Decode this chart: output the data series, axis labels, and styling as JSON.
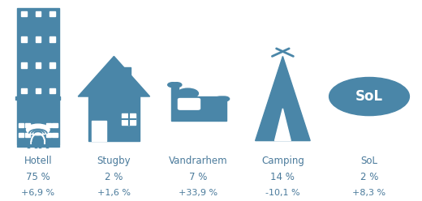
{
  "background_color": "#ffffff",
  "icon_color": "#4a86a8",
  "text_color": "#4a7a9b",
  "categories": [
    "Hotell",
    "Stugby",
    "Vandrarhem",
    "Camping",
    "SoL"
  ],
  "percentages": [
    "75 %",
    "2 %",
    "7 %",
    "14 %",
    "2 %"
  ],
  "changes": [
    "+6,9 %",
    "+1,6 %",
    "+33,9 %",
    "-10,1 %",
    "+8,3 %"
  ],
  "x_positions": [
    0.09,
    0.27,
    0.47,
    0.67,
    0.875
  ],
  "label_fontsize": 8.5,
  "pct_fontsize": 8.5,
  "change_fontsize": 8,
  "sol_text": "SoL",
  "figsize": [
    5.2,
    2.48
  ],
  "dpi": 100
}
